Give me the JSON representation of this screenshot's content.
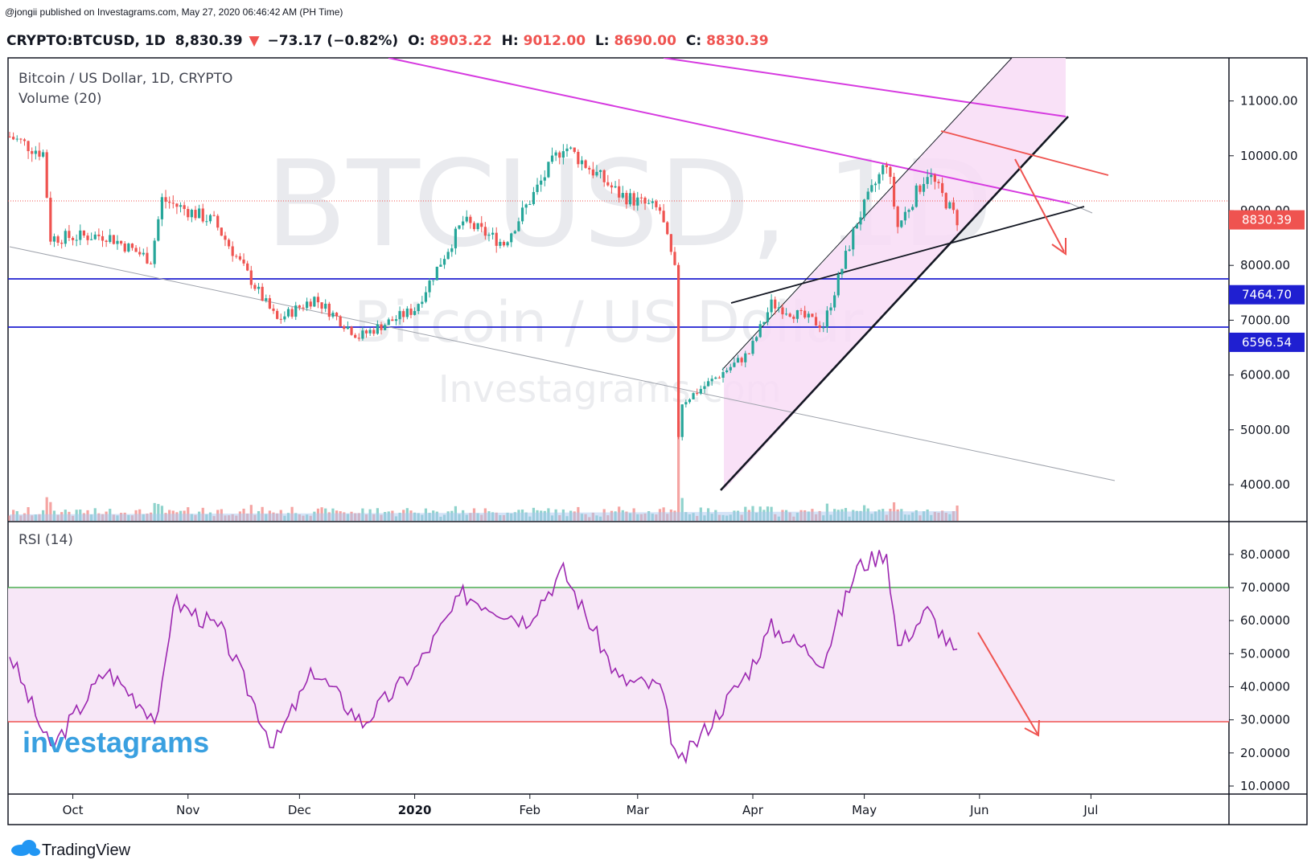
{
  "header": {
    "published_line": "@jongii published on Investagrams.com, May 27, 2020 06:46:42 AM (PH Time)",
    "symbol": "CRYPTO:BTCUSD, 1D",
    "price": "8,830.39",
    "change_arrow": "▼",
    "change": "−73.17 (−0.82%)",
    "open_label": "O:",
    "open": "8903.22",
    "high_label": "H:",
    "high": "9012.00",
    "low_label": "L:",
    "low": "8690.00",
    "close_label": "C:",
    "close": "8830.39"
  },
  "main_pane": {
    "title": "Bitcoin / US Dollar, 1D, CRYPTO",
    "volume_label": "Volume (20)",
    "watermark_big": "BTCUSD, 1D",
    "watermark_sub": "Bitcoin / US Dollar",
    "watermark_site": "Investagrams.com"
  },
  "rsi_pane": {
    "label": "RSI (14)"
  },
  "branding": {
    "investagrams": "investagrams",
    "tradingview": "TradingView"
  },
  "colors": {
    "up": "#26a69a",
    "down": "#ef5350",
    "rsi_line": "#9c27b0",
    "support": "#1f1fd1",
    "trend_magenta": "#d63ae0",
    "channel_fill": "#f6d5f5",
    "rsi_band": "#f7e7f7"
  },
  "chart_data": [
    {
      "type": "candlestick",
      "title": "Bitcoin / US Dollar, 1D, CRYPTO",
      "x_tick_labels": [
        "Oct",
        "Nov",
        "Dec",
        "2020",
        "Feb",
        "Mar",
        "Apr",
        "May",
        "Jun",
        "Jul"
      ],
      "y_tick_labels": [
        "4000.00",
        "5000.00",
        "6000.00",
        "7000.00",
        "8000.00",
        "9000.00",
        "10000.00",
        "11000.00"
      ],
      "ylim": [
        3200,
        11400
      ],
      "price_labels": [
        {
          "name": "last",
          "value": 8830.39,
          "text": "8830.39"
        },
        {
          "name": "resistance",
          "value": 7464.7,
          "text": "7464.70"
        },
        {
          "name": "support",
          "value": 6596.54,
          "text": "6596.54"
        }
      ],
      "series_close_approx": [
        {
          "date": "2019-09-14",
          "close": 10350
        },
        {
          "date": "2019-09-23",
          "close": 10050
        },
        {
          "date": "2019-09-25",
          "close": 8500
        },
        {
          "date": "2019-10-10",
          "close": 8550
        },
        {
          "date": "2019-10-22",
          "close": 8100
        },
        {
          "date": "2019-10-25",
          "close": 9200
        },
        {
          "date": "2019-11-08",
          "close": 8800
        },
        {
          "date": "2019-11-22",
          "close": 7300
        },
        {
          "date": "2019-11-25",
          "close": 7000
        },
        {
          "date": "2019-12-05",
          "close": 7400
        },
        {
          "date": "2019-12-17",
          "close": 6700
        },
        {
          "date": "2020-01-01",
          "close": 7200
        },
        {
          "date": "2020-01-14",
          "close": 8800
        },
        {
          "date": "2020-01-25",
          "close": 8400
        },
        {
          "date": "2020-02-10",
          "close": 10200
        },
        {
          "date": "2020-02-25",
          "close": 9300
        },
        {
          "date": "2020-03-07",
          "close": 9000
        },
        {
          "date": "2020-03-11",
          "close": 7900
        },
        {
          "date": "2020-03-12",
          "close": 4900
        },
        {
          "date": "2020-03-13",
          "close": 5500
        },
        {
          "date": "2020-03-31",
          "close": 6400
        },
        {
          "date": "2020-04-06",
          "close": 7300
        },
        {
          "date": "2020-04-20",
          "close": 6900
        },
        {
          "date": "2020-04-29",
          "close": 8800
        },
        {
          "date": "2020-05-07",
          "close": 9900
        },
        {
          "date": "2020-05-10",
          "close": 8700
        },
        {
          "date": "2020-05-18",
          "close": 9700
        },
        {
          "date": "2020-05-26",
          "close": 8830
        }
      ]
    },
    {
      "type": "line",
      "title": "RSI (14)",
      "y_tick_labels": [
        "10.0000",
        "20.0000",
        "30.0000",
        "40.0000",
        "50.0000",
        "60.0000",
        "70.0000",
        "80.0000"
      ],
      "ylim": [
        9,
        85
      ],
      "levels": [
        30,
        70
      ],
      "series": [
        {
          "values_approx": [
            {
              "date": "2019-09-14",
              "v": 50
            },
            {
              "date": "2019-09-25",
              "v": 21
            },
            {
              "date": "2019-10-10",
              "v": 45
            },
            {
              "date": "2019-10-24",
              "v": 30
            },
            {
              "date": "2019-10-28",
              "v": 66
            },
            {
              "date": "2019-11-10",
              "v": 57
            },
            {
              "date": "2019-11-24",
              "v": 22
            },
            {
              "date": "2019-12-05",
              "v": 45
            },
            {
              "date": "2019-12-18",
              "v": 29
            },
            {
              "date": "2020-01-01",
              "v": 45
            },
            {
              "date": "2020-01-14",
              "v": 68
            },
            {
              "date": "2020-01-31",
              "v": 60
            },
            {
              "date": "2020-02-10",
              "v": 75
            },
            {
              "date": "2020-02-25",
              "v": 42
            },
            {
              "date": "2020-03-07",
              "v": 40
            },
            {
              "date": "2020-03-12",
              "v": 16
            },
            {
              "date": "2020-03-31",
              "v": 45
            },
            {
              "date": "2020-04-06",
              "v": 58
            },
            {
              "date": "2020-04-20",
              "v": 48
            },
            {
              "date": "2020-04-29",
              "v": 76
            },
            {
              "date": "2020-05-07",
              "v": 81
            },
            {
              "date": "2020-05-10",
              "v": 52
            },
            {
              "date": "2020-05-18",
              "v": 63
            },
            {
              "date": "2020-05-26",
              "v": 49
            }
          ]
        }
      ]
    }
  ]
}
